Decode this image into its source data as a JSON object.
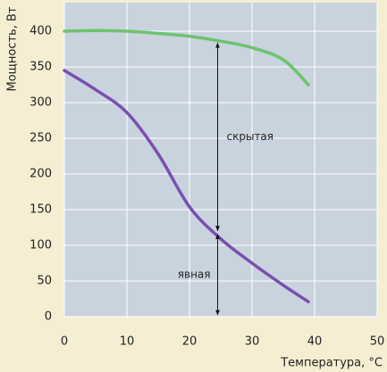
{
  "chart_data": {
    "type": "line",
    "x_label": "Температура, °C",
    "y_label": "Мощность, Вт",
    "x": [
      0,
      5,
      10,
      15,
      20,
      25,
      30,
      35,
      39
    ],
    "series": [
      {
        "color": "#6cc46c",
        "values": [
          400,
          401,
          400,
          397,
          393,
          386,
          377,
          360,
          325
        ]
      },
      {
        "color": "#7a4fb0",
        "values": [
          345,
          318,
          286,
          228,
          154,
          109,
          75,
          44,
          21
        ]
      }
    ],
    "xlim": [
      0,
      50
    ],
    "xticks": [
      0,
      10,
      20,
      30,
      40,
      50
    ],
    "ylim": [
      0,
      440
    ],
    "yticks": [
      0,
      50,
      100,
      150,
      200,
      250,
      300,
      350,
      400
    ],
    "grid": true,
    "annotations": [
      {
        "text": "скрытая",
        "x": 24.5,
        "from": 386,
        "to": 118,
        "label_side": "right"
      },
      {
        "text": "явная",
        "x": 24.5,
        "from": 118,
        "to": 0,
        "label_side": "left"
      }
    ]
  }
}
